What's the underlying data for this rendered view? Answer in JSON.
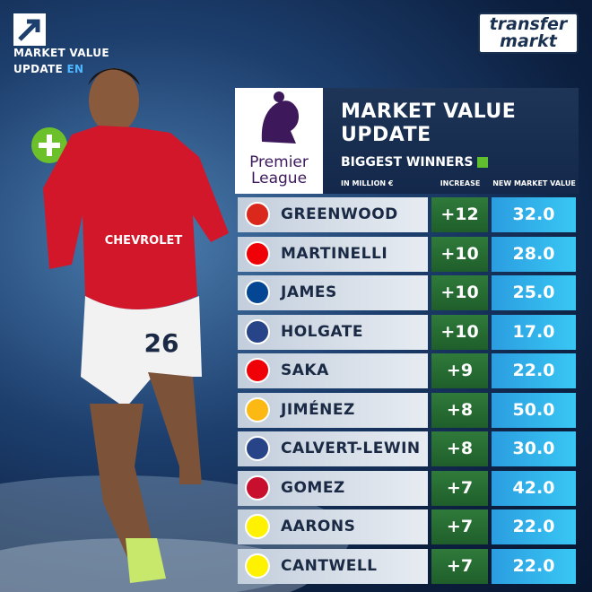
{
  "top_left": {
    "line1": "MARKET VALUE",
    "line2": "UPDATE",
    "lang": "EN"
  },
  "logo": {
    "line1": "transfer",
    "line2": "markt"
  },
  "league": {
    "line1": "Premier",
    "line2": "League"
  },
  "header": {
    "title_line1": "MARKET VALUE",
    "title_line2": "UPDATE",
    "subtitle": "BIGGEST WINNERS",
    "unit": "IN MILLION €",
    "col_increase": "INCREASE",
    "col_value": "NEW MARKET VALUE"
  },
  "photo": {
    "sponsor": "CHEVROLET",
    "number": "26"
  },
  "table": {
    "rows": [
      {
        "name": "GREENWOOD",
        "increase": "+12",
        "value": "32.0",
        "color": "#da291c"
      },
      {
        "name": "MARTINELLI",
        "increase": "+10",
        "value": "28.0",
        "color": "#ef0107"
      },
      {
        "name": "JAMES",
        "increase": "+10",
        "value": "25.0",
        "color": "#034694"
      },
      {
        "name": "HOLGATE",
        "increase": "+10",
        "value": "17.0",
        "color": "#274488"
      },
      {
        "name": "SAKA",
        "increase": "+9",
        "value": "22.0",
        "color": "#ef0107"
      },
      {
        "name": "JIMÉNEZ",
        "increase": "+8",
        "value": "50.0",
        "color": "#fdb913"
      },
      {
        "name": "CALVERT-LEWIN",
        "increase": "+8",
        "value": "30.0",
        "color": "#274488"
      },
      {
        "name": "GOMEZ",
        "increase": "+7",
        "value": "42.0",
        "color": "#c8102e"
      },
      {
        "name": "AARONS",
        "increase": "+7",
        "value": "22.0",
        "color": "#fff200"
      },
      {
        "name": "CANTWELL",
        "increase": "+7",
        "value": "22.0",
        "color": "#fff200"
      }
    ]
  }
}
